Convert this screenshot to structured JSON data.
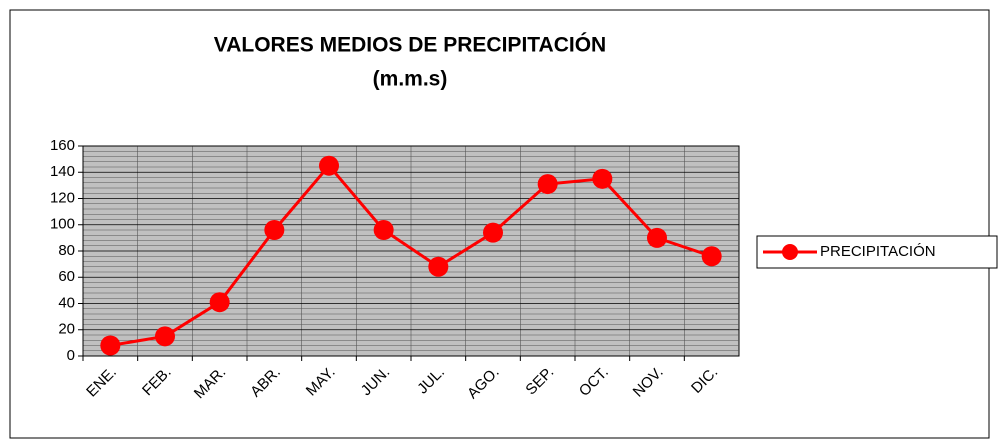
{
  "chart_data": {
    "type": "line",
    "title": "VALORES MEDIOS DE PRECIPITACIÓN",
    "subtitle": "(m.m.s)",
    "categories": [
      "ENE.",
      "FEB.",
      "MAR.",
      "ABR.",
      "MAY.",
      "JUN.",
      "JUL.",
      "AGO.",
      "SEP.",
      "OCT.",
      "NOV.",
      "DIC."
    ],
    "series": [
      {
        "name": "PRECIPITACIÓN",
        "color": "#ff0000",
        "values": [
          8,
          15,
          41,
          96,
          145,
          96,
          68,
          94,
          131,
          135,
          90,
          76
        ]
      }
    ],
    "ylim": [
      0,
      160
    ],
    "yticks": [
      0,
      20,
      40,
      60,
      80,
      100,
      120,
      140,
      160
    ],
    "grid": true,
    "minor_grid": true,
    "legend": "right"
  }
}
